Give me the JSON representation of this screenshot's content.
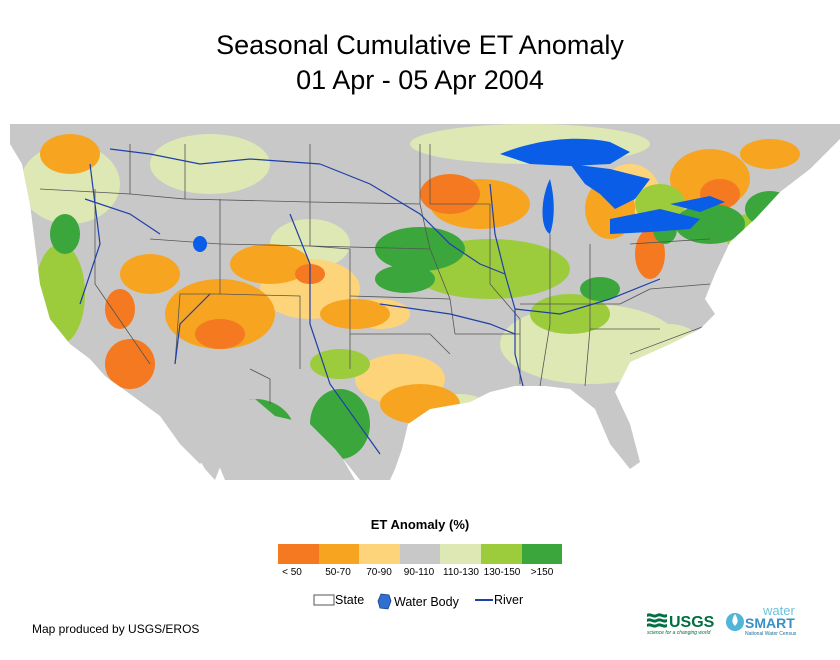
{
  "title": {
    "line1": "Seasonal Cumulative ET Anomaly",
    "line2": "01 Apr - 05 Apr 2004"
  },
  "legend": {
    "title": "ET Anomaly (%)",
    "classes": [
      {
        "label": "< 50",
        "color": "#f47920"
      },
      {
        "label": "50-70",
        "color": "#f7a520"
      },
      {
        "label": "70-90",
        "color": "#fdd47a"
      },
      {
        "label": "90-110",
        "color": "#c8c8c8"
      },
      {
        "label": "110-130",
        "color": "#dde8b4"
      },
      {
        "label": "130-150",
        "color": "#9ccc3c"
      },
      {
        "label": ">150",
        "color": "#3aa63c"
      }
    ],
    "features": {
      "state": "State",
      "water_body": "Water Body",
      "river": "River"
    }
  },
  "colors": {
    "water": "#0a5de6",
    "river": "#1f3fa8",
    "state_line": "#555555",
    "background_land": "#c8c8c8"
  },
  "credit": "Map produced by USGS/EROS",
  "logos": {
    "usgs": "USGS",
    "usgs_tagline": "science for a changing world",
    "water_smart_top": "water",
    "water_smart_main": "SMART",
    "water_smart_tagline": "National Water Census"
  }
}
